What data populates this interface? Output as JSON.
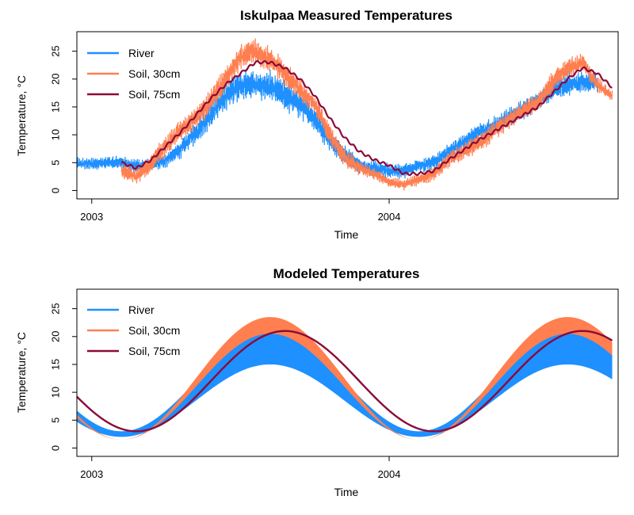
{
  "colors": {
    "river": "#1e90ff",
    "soil30": "#ff7f50",
    "soil75": "#8b0a3a"
  },
  "chart_data": [
    {
      "type": "line",
      "title": "Iskulpaa Measured Temperatures",
      "xlabel": "Time",
      "ylabel": "Temperature, °C",
      "xlim": [
        2002.95,
        2004.77
      ],
      "ylim": [
        -1.5,
        28.5
      ],
      "x_ticks": [
        {
          "value": 2003,
          "label": "2003"
        },
        {
          "value": 2004,
          "label": "2004"
        }
      ],
      "y_ticks": [
        0,
        5,
        10,
        15,
        20,
        25
      ],
      "grid": false,
      "legend_position": "top-left",
      "series": [
        {
          "name": "River",
          "color": "#1e90ff",
          "style": "noisy",
          "x": [
            2002.95,
            2003.0,
            2003.05,
            2003.1,
            2003.15,
            2003.2,
            2003.25,
            2003.3,
            2003.35,
            2003.4,
            2003.45,
            2003.5,
            2003.55,
            2003.6,
            2003.65,
            2003.7,
            2003.75,
            2003.8,
            2003.85,
            2003.9,
            2003.95,
            2004.0,
            2004.05,
            2004.1,
            2004.15,
            2004.2,
            2004.3,
            2004.4,
            2004.5,
            2004.55,
            2004.6,
            2004.65,
            2004.7
          ],
          "center": [
            4.8,
            4.8,
            5.0,
            5.0,
            4.5,
            4.5,
            5.5,
            7.5,
            10.5,
            13.5,
            17.0,
            19.0,
            19.0,
            18.5,
            17.0,
            15.5,
            13.0,
            9.0,
            6.5,
            4.5,
            4.0,
            3.5,
            3.5,
            4.5,
            5.0,
            7.0,
            10.5,
            13.0,
            16.0,
            18.0,
            19.0,
            19.5,
            19.5
          ],
          "amplitude": [
            1.2,
            1.2,
            1.3,
            1.2,
            1.3,
            1.3,
            1.5,
            1.8,
            2.2,
            2.5,
            2.8,
            3.0,
            3.0,
            3.2,
            3.0,
            2.8,
            2.6,
            2.2,
            1.8,
            1.5,
            1.5,
            1.5,
            1.5,
            1.5,
            1.5,
            1.5,
            1.6,
            1.8,
            2.0,
            2.2,
            2.2,
            2.0,
            2.0
          ],
          "x_start": 2002.95,
          "x_end": 2004.7
        },
        {
          "name": "Soil, 30cm",
          "color": "#ff7f50",
          "style": "noisy",
          "x": [
            2003.1,
            2003.15,
            2003.2,
            2003.25,
            2003.3,
            2003.35,
            2003.4,
            2003.45,
            2003.5,
            2003.55,
            2003.6,
            2003.65,
            2003.7,
            2003.75,
            2003.8,
            2003.85,
            2003.9,
            2003.95,
            2004.0,
            2004.05,
            2004.1,
            2004.15,
            2004.2,
            2004.3,
            2004.4,
            2004.5,
            2004.55,
            2004.6,
            2004.65,
            2004.7,
            2004.75
          ],
          "center": [
            3.5,
            2.5,
            5.0,
            8.0,
            11.0,
            13.0,
            16.0,
            20.0,
            24.0,
            25.0,
            23.5,
            21.0,
            18.0,
            15.5,
            10.0,
            6.0,
            4.0,
            3.0,
            1.5,
            1.0,
            2.0,
            3.0,
            5.5,
            8.5,
            12.5,
            16.0,
            19.5,
            22.0,
            23.0,
            19.0,
            17.0
          ],
          "amplitude": [
            1.5,
            1.5,
            2.0,
            2.0,
            2.2,
            2.4,
            2.4,
            2.5,
            2.5,
            2.5,
            2.5,
            2.4,
            2.2,
            2.0,
            2.0,
            1.8,
            1.5,
            1.2,
            1.0,
            1.0,
            1.2,
            1.4,
            1.6,
            1.8,
            1.8,
            2.0,
            2.0,
            2.0,
            1.8,
            1.5,
            1.2
          ],
          "x_start": 2003.1,
          "x_end": 2004.75
        },
        {
          "name": "Soil, 75cm",
          "color": "#8b0a3a",
          "style": "smooth",
          "x": [
            2003.1,
            2003.15,
            2003.2,
            2003.25,
            2003.3,
            2003.35,
            2003.4,
            2003.45,
            2003.5,
            2003.55,
            2003.6,
            2003.65,
            2003.7,
            2003.75,
            2003.8,
            2003.85,
            2003.9,
            2003.95,
            2004.0,
            2004.05,
            2004.1,
            2004.15,
            2004.2,
            2004.3,
            2004.4,
            2004.5,
            2004.55,
            2004.6,
            2004.65,
            2004.7,
            2004.75
          ],
          "y": [
            5.0,
            4.0,
            5.5,
            8.0,
            10.5,
            13.5,
            16.5,
            19.0,
            21.0,
            23.0,
            23.0,
            22.0,
            20.0,
            17.0,
            13.0,
            9.5,
            7.0,
            5.5,
            4.5,
            3.0,
            3.0,
            3.5,
            5.5,
            9.0,
            12.0,
            15.0,
            17.5,
            20.0,
            22.0,
            21.0,
            18.5
          ]
        }
      ]
    },
    {
      "type": "line",
      "title": "Modeled Temperatures",
      "xlabel": "Time",
      "ylabel": "Temperature, °C",
      "xlim": [
        2002.95,
        2004.77
      ],
      "ylim": [
        -1.5,
        28.5
      ],
      "x_ticks": [
        {
          "value": 2003,
          "label": "2003"
        },
        {
          "value": 2004,
          "label": "2004"
        }
      ],
      "y_ticks": [
        0,
        5,
        10,
        15,
        20,
        25
      ],
      "grid": false,
      "legend_position": "top-left",
      "series": [
        {
          "name": "River",
          "color": "#1e90ff",
          "style": "band",
          "x_range": [
            2002.95,
            2004.75
          ],
          "lower": {
            "mean": 8.5,
            "amplitude": 6.5,
            "peak": 2003.6
          },
          "upper": {
            "mean": 12.0,
            "amplitude": 9.0,
            "peak": 2003.6
          }
        },
        {
          "name": "Soil, 30cm",
          "color": "#ff7f50",
          "style": "band",
          "x_range": [
            2002.95,
            2004.75
          ],
          "lower": {
            "mean": 11.0,
            "amplitude": 9.5,
            "peak": 2003.6
          },
          "upper": {
            "mean": 12.5,
            "amplitude": 11.0,
            "peak": 2003.6
          }
        },
        {
          "name": "Soil, 75cm",
          "color": "#8b0a3a",
          "style": "sine",
          "x_range": [
            2002.95,
            2004.75
          ],
          "mean": 12.0,
          "amplitude": 9.0,
          "peak": 2003.65
        }
      ]
    }
  ]
}
